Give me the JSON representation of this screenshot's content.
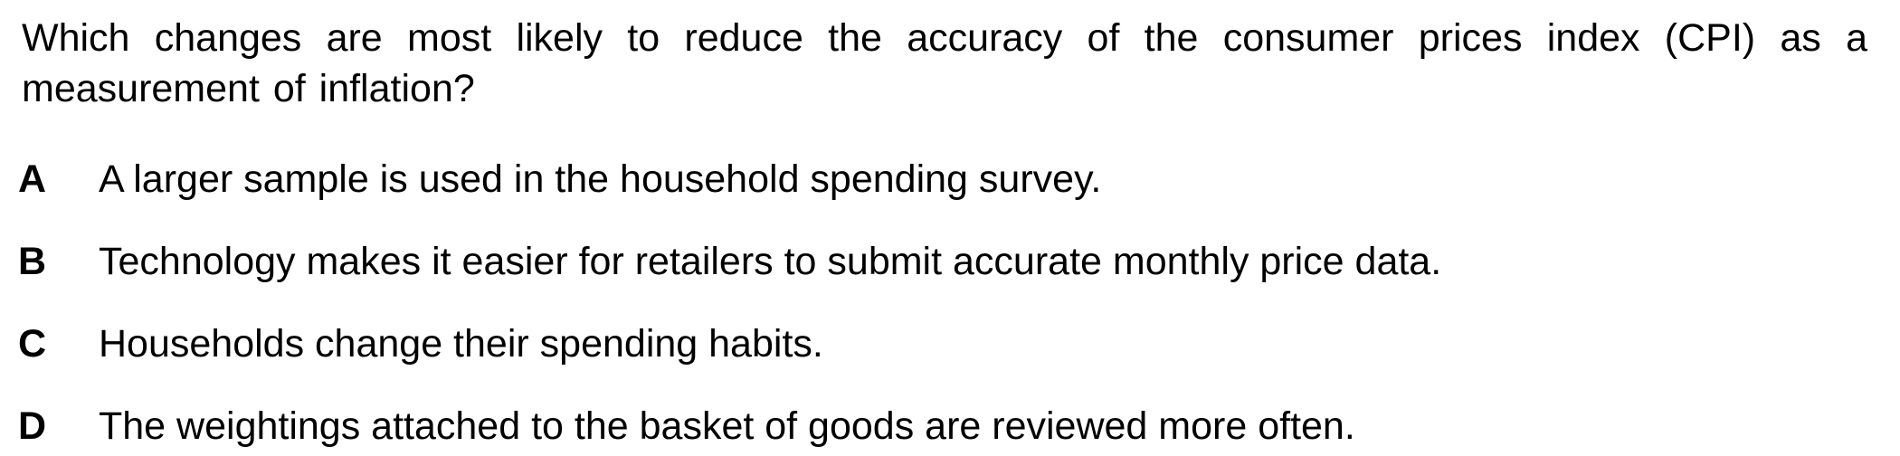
{
  "question": {
    "text": "Which changes are most likely to reduce the accuracy of the consumer prices index (CPI) as a measurement of inflation?"
  },
  "options": [
    {
      "letter": "A",
      "text": "A larger sample is used in the household spending survey."
    },
    {
      "letter": "B",
      "text": "Technology makes it easier for retailers to submit accurate monthly price data."
    },
    {
      "letter": "C",
      "text": "Households change their spending habits."
    },
    {
      "letter": "D",
      "text": "The weightings attached to the basket of goods are reviewed more often."
    }
  ]
}
